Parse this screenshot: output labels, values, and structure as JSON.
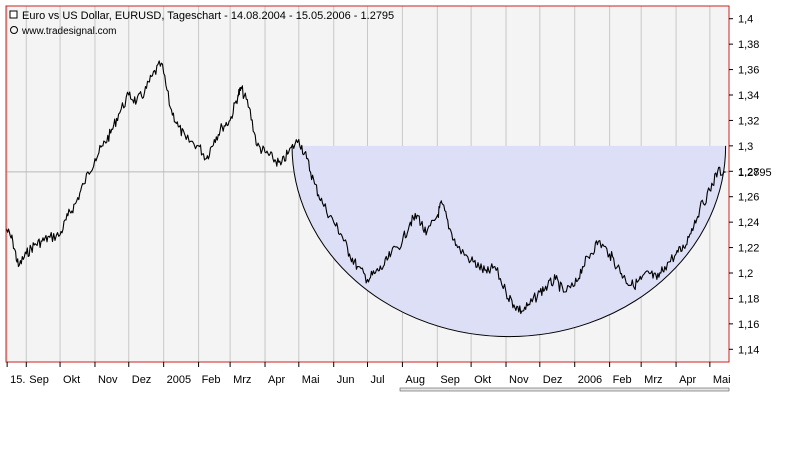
{
  "chart_data": {
    "type": "line",
    "title": "Euro vs US Dollar, EURUSD, Tageschart - 14.08.2004 - 15.05.2006 - 1.2795",
    "watermark": "www.tradesignal.com",
    "xlabel": "",
    "ylabel": "",
    "ylim": [
      1.13,
      1.41
    ],
    "yticks": [
      "1,14",
      "1,16",
      "1,18",
      "1,2",
      "1,22",
      "1,24",
      "1,26",
      "1,28",
      "1,3",
      "1,32",
      "1,34",
      "1,36",
      "1,38",
      "1,4"
    ],
    "current_value": 1.2795,
    "current_value_label": "1.2795",
    "x_labels": [
      "15.",
      "Sep",
      "Okt",
      "Nov",
      "Dez",
      "2005",
      "Feb",
      "Mrz",
      "Apr",
      "Mai",
      "Jun",
      "Jul",
      "Aug",
      "Sep",
      "Okt",
      "Nov",
      "Dez",
      "2006",
      "Feb",
      "Mrz",
      "Apr",
      "Mai"
    ],
    "x_label_dates": [
      "2004-08-15",
      "2004-09-01",
      "2004-10-01",
      "2004-11-01",
      "2004-12-01",
      "2005-01-01",
      "2005-02-01",
      "2005-03-01",
      "2005-04-01",
      "2005-05-01",
      "2005-06-01",
      "2005-07-01",
      "2005-08-01",
      "2005-09-01",
      "2005-10-01",
      "2005-11-01",
      "2005-12-01",
      "2006-01-01",
      "2006-02-01",
      "2006-03-01",
      "2006-04-01",
      "2006-05-01"
    ],
    "series": [
      {
        "x": [
          "2004-08-14",
          "2004-08-20",
          "2004-08-25",
          "2004-09-01",
          "2004-09-08",
          "2004-09-15",
          "2004-09-22",
          "2004-10-01",
          "2004-10-08",
          "2004-10-15",
          "2004-10-22",
          "2004-11-01",
          "2004-11-08",
          "2004-11-15",
          "2004-11-22",
          "2004-12-01",
          "2004-12-08",
          "2004-12-15",
          "2004-12-22",
          "2004-12-30",
          "2005-01-07",
          "2005-01-14",
          "2005-01-21",
          "2005-02-01",
          "2005-02-08",
          "2005-02-15",
          "2005-02-22",
          "2005-03-01",
          "2005-03-08",
          "2005-03-11",
          "2005-03-18",
          "2005-03-25",
          "2005-04-01",
          "2005-04-08",
          "2005-04-15",
          "2005-04-22",
          "2005-05-01",
          "2005-05-08",
          "2005-05-15",
          "2005-05-22",
          "2005-06-01",
          "2005-06-08",
          "2005-06-15",
          "2005-06-22",
          "2005-07-01",
          "2005-07-08",
          "2005-07-15",
          "2005-07-22",
          "2005-08-01",
          "2005-08-08",
          "2005-08-15",
          "2005-08-22",
          "2005-09-01",
          "2005-09-05",
          "2005-09-12",
          "2005-09-19",
          "2005-10-01",
          "2005-10-08",
          "2005-10-15",
          "2005-10-22",
          "2005-11-01",
          "2005-11-08",
          "2005-11-15",
          "2005-11-22",
          "2005-12-01",
          "2005-12-08",
          "2005-12-15",
          "2005-12-22",
          "2006-01-01",
          "2006-01-08",
          "2006-01-15",
          "2006-01-22",
          "2006-02-01",
          "2006-02-08",
          "2006-02-15",
          "2006-02-22",
          "2006-03-01",
          "2006-03-08",
          "2006-03-15",
          "2006-03-22",
          "2006-04-01",
          "2006-04-08",
          "2006-04-15",
          "2006-04-22",
          "2006-05-01",
          "2006-05-08",
          "2006-05-15"
        ],
        "y": [
          1.235,
          1.225,
          1.205,
          1.215,
          1.222,
          1.225,
          1.228,
          1.23,
          1.245,
          1.255,
          1.27,
          1.29,
          1.3,
          1.31,
          1.325,
          1.34,
          1.335,
          1.342,
          1.355,
          1.365,
          1.33,
          1.315,
          1.305,
          1.3,
          1.29,
          1.305,
          1.315,
          1.32,
          1.34,
          1.345,
          1.33,
          1.3,
          1.295,
          1.29,
          1.285,
          1.295,
          1.305,
          1.29,
          1.27,
          1.255,
          1.24,
          1.23,
          1.215,
          1.205,
          1.195,
          1.2,
          1.205,
          1.215,
          1.225,
          1.24,
          1.245,
          1.23,
          1.245,
          1.255,
          1.235,
          1.22,
          1.21,
          1.205,
          1.2,
          1.205,
          1.185,
          1.175,
          1.17,
          1.175,
          1.185,
          1.19,
          1.195,
          1.185,
          1.19,
          1.205,
          1.215,
          1.225,
          1.215,
          1.205,
          1.195,
          1.19,
          1.195,
          1.2,
          1.195,
          1.205,
          1.215,
          1.22,
          1.235,
          1.25,
          1.265,
          1.28,
          1.2795
        ]
      }
    ],
    "shaded_region": {
      "x_start": "2005-04-25",
      "x_end": "2006-05-15",
      "y_top": 1.3,
      "y_bottom": 1.15,
      "shape": "cup"
    },
    "grid": true,
    "colors": {
      "line": "#000000",
      "shade": "#dcdff6",
      "frame": "#cc2020",
      "grid": "#c8c8c8",
      "baseline": "#b9b9b9"
    }
  }
}
